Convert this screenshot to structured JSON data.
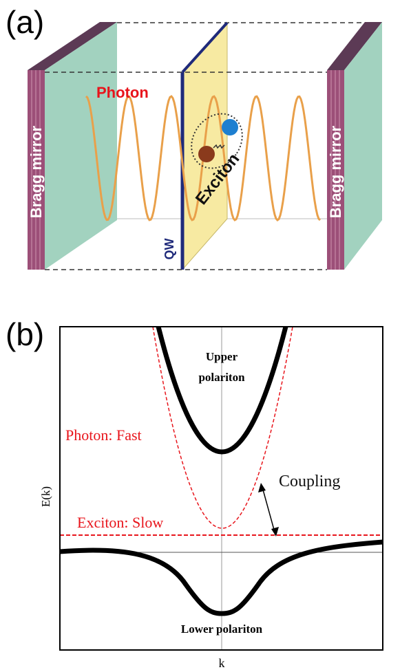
{
  "panel_a": {
    "label": "(a)",
    "photon": "Photon",
    "mirror_left": "Bragg mirror",
    "mirror_right": "Bragg mirror",
    "exciton": "Exciton",
    "qw": "QW"
  },
  "panel_b": {
    "label": "(b)",
    "upper_polariton": [
      "Upper",
      "polariton"
    ],
    "photon": "Photon: Fast",
    "coupling": "Coupling",
    "exciton": "Exciton: Slow",
    "y_label": "E(k)",
    "lower_polariton": "Lower polariton",
    "x_label": "k"
  }
}
